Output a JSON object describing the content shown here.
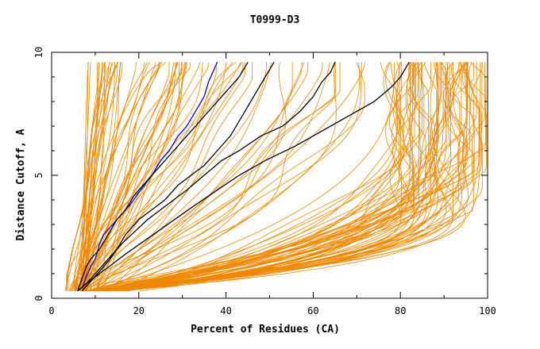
{
  "chart_data": {
    "type": "line",
    "title": "T0999-D3",
    "xlabel": "Percent of Residues (CA)",
    "ylabel": "Distance Cutoff, A",
    "xlim": [
      0,
      100
    ],
    "ylim": [
      0,
      10
    ],
    "xticks": [
      0,
      20,
      40,
      60,
      80,
      100
    ],
    "yticks": [
      0,
      5,
      10
    ],
    "grid": false,
    "legend": "none",
    "colors": {
      "other": "#ee8800",
      "highlight_black": "#000000",
      "highlight_blue": "#0000ee"
    },
    "highlighted_series": [
      {
        "color": "#0000ee",
        "points": [
          [
            7,
            0.4
          ],
          [
            8,
            0.9
          ],
          [
            9,
            1.3
          ],
          [
            10,
            1.6
          ],
          [
            11,
            2.2
          ],
          [
            12,
            2.6
          ],
          [
            14,
            3.0
          ],
          [
            16,
            3.4
          ],
          [
            18,
            3.8
          ],
          [
            20,
            4.3
          ],
          [
            23,
            5.0
          ],
          [
            25,
            5.6
          ],
          [
            27,
            6.0
          ],
          [
            29,
            6.6
          ],
          [
            31,
            7.0
          ],
          [
            33,
            7.6
          ],
          [
            35,
            8.2
          ],
          [
            36,
            8.8
          ],
          [
            37,
            9.2
          ],
          [
            38,
            9.6
          ]
        ]
      },
      {
        "color": "#000000",
        "points": [
          [
            6,
            0.3
          ],
          [
            7,
            0.8
          ],
          [
            8,
            1.3
          ],
          [
            9,
            1.6
          ],
          [
            11,
            2.0
          ],
          [
            13,
            2.6
          ],
          [
            15,
            3.2
          ],
          [
            17,
            3.6
          ],
          [
            19,
            4.2
          ],
          [
            22,
            4.8
          ],
          [
            25,
            5.4
          ],
          [
            28,
            6.0
          ],
          [
            31,
            6.6
          ],
          [
            33,
            7.0
          ],
          [
            35,
            7.4
          ],
          [
            37,
            7.8
          ],
          [
            39,
            8.2
          ],
          [
            41,
            8.6
          ],
          [
            43,
            9.0
          ],
          [
            45,
            9.6
          ]
        ]
      },
      {
        "color": "#000000",
        "points": [
          [
            7,
            0.3
          ],
          [
            9,
            0.7
          ],
          [
            11,
            1.1
          ],
          [
            13,
            1.5
          ],
          [
            15,
            2.0
          ],
          [
            17,
            2.6
          ],
          [
            20,
            3.2
          ],
          [
            23,
            3.6
          ],
          [
            26,
            4.0
          ],
          [
            29,
            4.6
          ],
          [
            32,
            5.0
          ],
          [
            35,
            5.4
          ],
          [
            38,
            6.0
          ],
          [
            41,
            6.6
          ],
          [
            43,
            7.2
          ],
          [
            45,
            7.8
          ],
          [
            47,
            8.4
          ],
          [
            49,
            9.0
          ],
          [
            51,
            9.6
          ]
        ]
      },
      {
        "color": "#000000",
        "points": [
          [
            6,
            0.3
          ],
          [
            8,
            0.6
          ],
          [
            10,
            1.0
          ],
          [
            12,
            1.4
          ],
          [
            14,
            1.8
          ],
          [
            16,
            2.2
          ],
          [
            19,
            2.7
          ],
          [
            22,
            3.2
          ],
          [
            25,
            3.6
          ],
          [
            28,
            4.0
          ],
          [
            31,
            4.4
          ],
          [
            35,
            5.0
          ],
          [
            39,
            5.6
          ],
          [
            43,
            6.0
          ],
          [
            48,
            6.6
          ],
          [
            53,
            7.0
          ],
          [
            57,
            7.6
          ],
          [
            60,
            8.2
          ],
          [
            62,
            8.8
          ],
          [
            64,
            9.2
          ],
          [
            65,
            9.6
          ]
        ]
      },
      {
        "color": "#000000",
        "points": [
          [
            6,
            0.3
          ],
          [
            8,
            0.6
          ],
          [
            11,
            1.0
          ],
          [
            14,
            1.4
          ],
          [
            17,
            1.8
          ],
          [
            21,
            2.3
          ],
          [
            25,
            2.8
          ],
          [
            29,
            3.3
          ],
          [
            33,
            3.8
          ],
          [
            38,
            4.4
          ],
          [
            43,
            5.0
          ],
          [
            49,
            5.6
          ],
          [
            56,
            6.2
          ],
          [
            62,
            6.8
          ],
          [
            68,
            7.4
          ],
          [
            74,
            8.0
          ],
          [
            78,
            8.6
          ],
          [
            80,
            9.0
          ],
          [
            82,
            9.6
          ]
        ]
      }
    ]
  }
}
